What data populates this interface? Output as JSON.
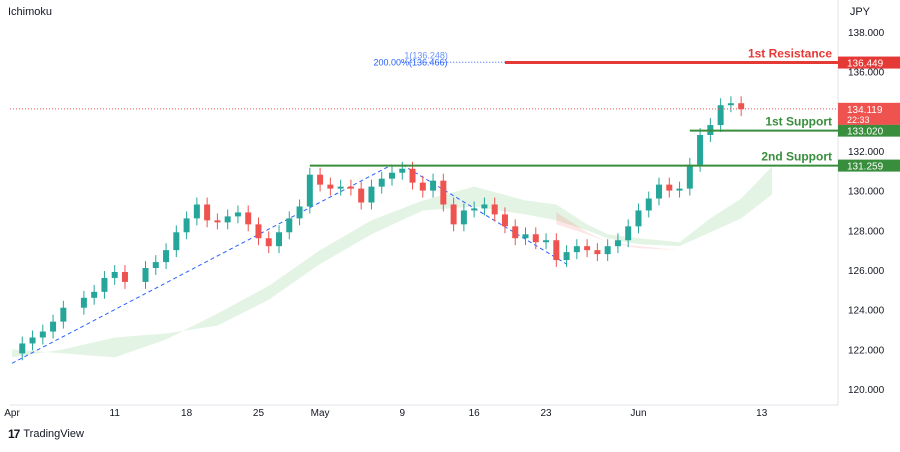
{
  "header": {
    "indicator": "Ichimoku",
    "currency": "JPY"
  },
  "footer": {
    "brand": "TradingView"
  },
  "chart_data": {
    "type": "candlestick",
    "y_ticks": [
      120,
      122,
      124,
      126,
      128,
      130,
      132,
      134,
      136,
      138
    ],
    "ylim": [
      119.2,
      139.6
    ],
    "x_ticks": [
      {
        "label": "Apr",
        "day": 0
      },
      {
        "label": "11",
        "day": 10
      },
      {
        "label": "18",
        "day": 17
      },
      {
        "label": "25",
        "day": 24
      },
      {
        "label": "May",
        "day": 30
      },
      {
        "label": "9",
        "day": 38
      },
      {
        "label": "16",
        "day": 45
      },
      {
        "label": "23",
        "day": 52
      },
      {
        "label": "Jun",
        "day": 61
      },
      {
        "label": "13",
        "day": 73
      }
    ],
    "close_path": [
      [
        0,
        121.8
      ],
      [
        1,
        122.3
      ],
      [
        2,
        122.6
      ],
      [
        3,
        122.9
      ],
      [
        4,
        123.4
      ],
      [
        5,
        124.1
      ],
      [
        7,
        124.6
      ],
      [
        8,
        124.9
      ],
      [
        9,
        125.6
      ],
      [
        10,
        125.9
      ],
      [
        11,
        125.4
      ],
      [
        13,
        126.1
      ],
      [
        14,
        126.4
      ],
      [
        15,
        127.0
      ],
      [
        16,
        127.9
      ],
      [
        17,
        128.6
      ],
      [
        18,
        129.3
      ],
      [
        19,
        128.5
      ],
      [
        20,
        128.4
      ],
      [
        21,
        128.7
      ],
      [
        22,
        128.9
      ],
      [
        23,
        128.3
      ],
      [
        24,
        127.6
      ],
      [
        25,
        127.2
      ],
      [
        26,
        127.9
      ],
      [
        27,
        128.6
      ],
      [
        28,
        129.2
      ],
      [
        29,
        130.8
      ],
      [
        30,
        130.3
      ],
      [
        31,
        130.1
      ],
      [
        32,
        130.2
      ],
      [
        33,
        130.1
      ],
      [
        34,
        129.4
      ],
      [
        35,
        130.2
      ],
      [
        36,
        130.6
      ],
      [
        37,
        130.9
      ],
      [
        38,
        131.1
      ],
      [
        39,
        130.4
      ],
      [
        40,
        130.0
      ],
      [
        41,
        130.5
      ],
      [
        42,
        129.3
      ],
      [
        43,
        128.3
      ],
      [
        44,
        129.0
      ],
      [
        45,
        129.1
      ],
      [
        46,
        129.3
      ],
      [
        47,
        128.8
      ],
      [
        48,
        128.2
      ],
      [
        49,
        127.6
      ],
      [
        50,
        127.8
      ],
      [
        51,
        127.4
      ],
      [
        52,
        127.5
      ],
      [
        53,
        126.5
      ],
      [
        54,
        126.9
      ],
      [
        55,
        127.2
      ],
      [
        56,
        127.0
      ],
      [
        57,
        126.8
      ],
      [
        58,
        127.2
      ],
      [
        59,
        127.5
      ],
      [
        60,
        128.2
      ],
      [
        61,
        129.0
      ],
      [
        62,
        129.6
      ],
      [
        63,
        130.3
      ],
      [
        64,
        130.0
      ],
      [
        65,
        130.1
      ],
      [
        66,
        131.3
      ],
      [
        67,
        132.8
      ],
      [
        68,
        133.3
      ],
      [
        69,
        134.3
      ],
      [
        70,
        134.4
      ],
      [
        71,
        134.1
      ]
    ],
    "cloud_upper": [
      [
        0,
        122.0
      ],
      [
        5,
        121.8
      ],
      [
        10,
        121.6
      ],
      [
        15,
        122.5
      ],
      [
        20,
        123.8
      ],
      [
        25,
        125.2
      ],
      [
        30,
        127.0
      ],
      [
        35,
        128.5
      ],
      [
        40,
        129.5
      ],
      [
        45,
        130.2
      ],
      [
        50,
        129.5
      ],
      [
        53,
        129.3
      ],
      [
        56,
        128.3
      ],
      [
        58,
        127.8
      ],
      [
        61,
        127.6
      ],
      [
        65,
        127.4
      ],
      [
        68,
        128.6
      ],
      [
        71,
        129.6
      ],
      [
        74,
        131.2
      ]
    ],
    "cloud_lower": [
      [
        0,
        121.6
      ],
      [
        5,
        122.0
      ],
      [
        10,
        122.6
      ],
      [
        15,
        122.8
      ],
      [
        20,
        123.2
      ],
      [
        25,
        124.5
      ],
      [
        30,
        126.3
      ],
      [
        35,
        127.8
      ],
      [
        40,
        129.0
      ],
      [
        45,
        129.2
      ],
      [
        50,
        128.8
      ],
      [
        53,
        128.5
      ],
      [
        56,
        128.0
      ],
      [
        58,
        127.6
      ],
      [
        61,
        127.3
      ],
      [
        65,
        127.2
      ],
      [
        68,
        127.9
      ],
      [
        71,
        128.6
      ],
      [
        74,
        129.8
      ]
    ],
    "trendlines": [
      {
        "from": [
          0,
          121.3
        ],
        "to": [
          37,
          131.3
        ]
      },
      {
        "from": [
          38,
          131.3
        ],
        "to": [
          54,
          126.3
        ]
      }
    ],
    "levels": [
      {
        "label": "1st Resistance",
        "value": 136.449,
        "price": "136.449",
        "color": "#e53935",
        "from_day": 48
      },
      {
        "label": "1st Support",
        "value": 133.02,
        "price": "133.020",
        "color": "#388e3c",
        "from_day": 66
      },
      {
        "label": "2nd Support",
        "value": 131.259,
        "price": "131.259",
        "color": "#388e3c",
        "from_day": 29
      }
    ],
    "fib_label": "200.00%(136.466)",
    "fib_label_secondary": "1(136.248)",
    "last_price": {
      "value": 134.119,
      "price": "134.119",
      "timer": "22:33",
      "color": "#ef5350"
    }
  }
}
